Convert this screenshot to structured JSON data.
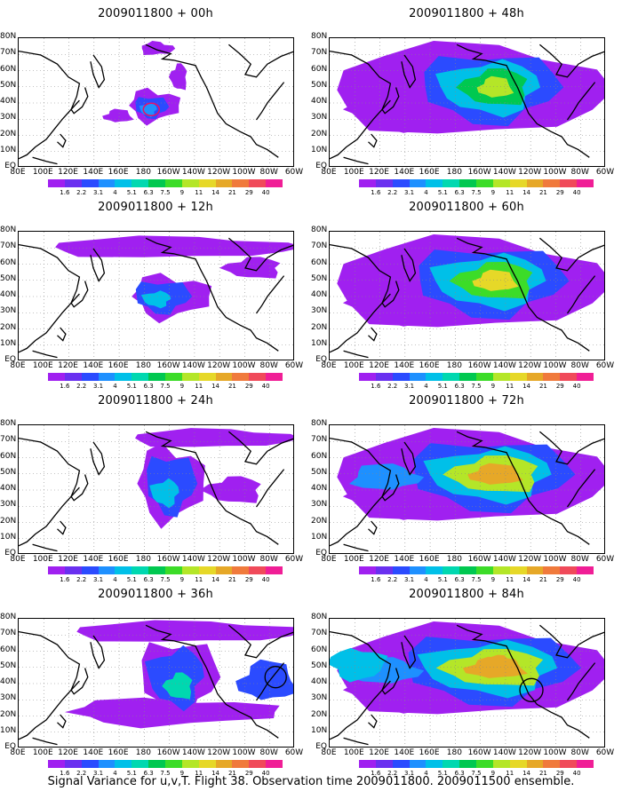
{
  "caption": "Signal Variance for u,v,T. Flight 38. Observation time 2009011800. 2009011500 ensemble.",
  "lat_labels": [
    "80N",
    "70N",
    "60N",
    "50N",
    "40N",
    "30N",
    "20N",
    "10N",
    "EQ"
  ],
  "lon_labels": [
    "80E",
    "100E",
    "120E",
    "140E",
    "160E",
    "180",
    "160W",
    "140W",
    "120W",
    "100W",
    "80W",
    "60W"
  ],
  "colorbar": {
    "labels": [
      "1.6",
      "2.2",
      "3.1",
      "4",
      "5.1",
      "6.3",
      "7.5",
      "9",
      "11",
      "14",
      "21",
      "29",
      "40"
    ],
    "colors": [
      "#a020f0",
      "#6a30f0",
      "#2b4bff",
      "#1e90ff",
      "#00c0e8",
      "#00d8b0",
      "#00c850",
      "#3cdc28",
      "#b4e628",
      "#e6d828",
      "#e6a828",
      "#f07a3c",
      "#f04a5a",
      "#f01e96"
    ]
  },
  "panels": [
    {
      "title": "2009011800 + 00h",
      "intensity": 0
    },
    {
      "title": "2009011800 + 12h",
      "intensity": 1
    },
    {
      "title": "2009011800 + 24h",
      "intensity": 2
    },
    {
      "title": "2009011800 + 36h",
      "intensity": 3
    },
    {
      "title": "2009011800 + 48h",
      "intensity": 4
    },
    {
      "title": "2009011800 + 60h",
      "intensity": 5
    },
    {
      "title": "2009011800 + 72h",
      "intensity": 6
    },
    {
      "title": "2009011800 + 84h",
      "intensity": 7
    }
  ]
}
